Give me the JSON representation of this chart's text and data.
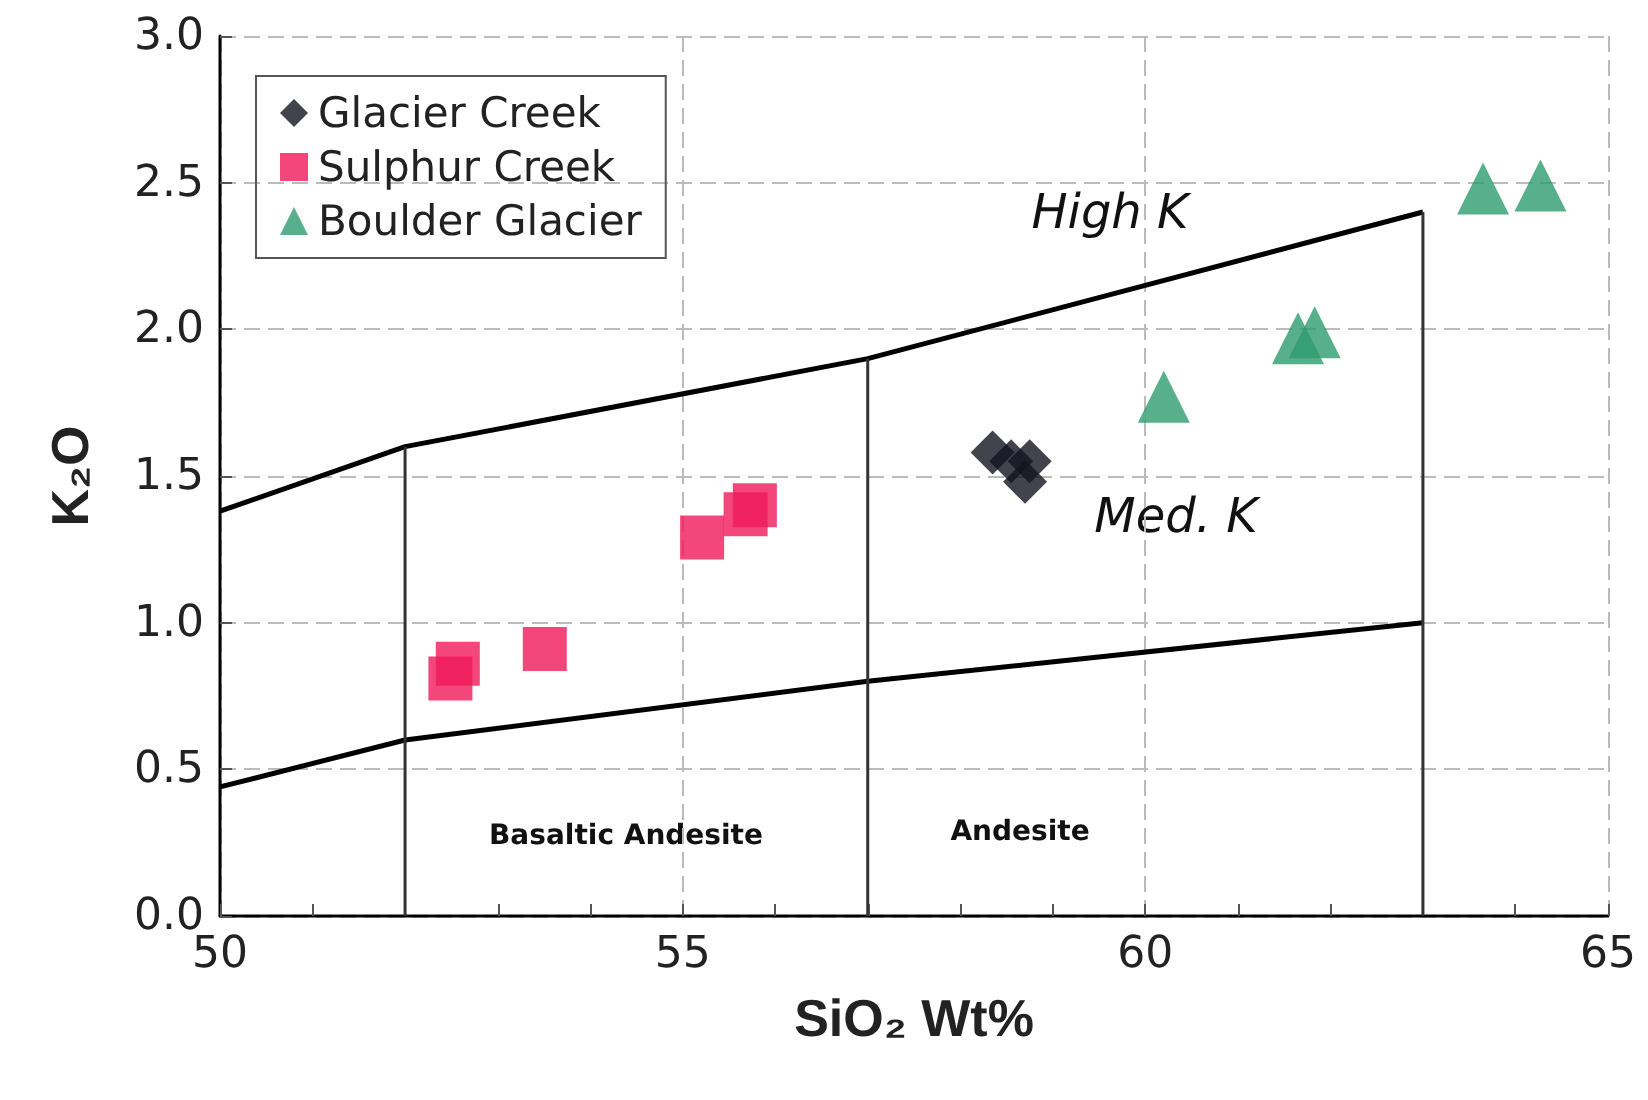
{
  "chart_data": {
    "type": "scatter",
    "xlabel": "SiO₂ Wt%",
    "ylabel": "K₂O",
    "xlim": [
      50,
      65
    ],
    "ylim": [
      0,
      3.0
    ],
    "xticks": [
      50,
      {
        "value": 51,
        "label": null
      },
      {
        "value": 52,
        "label": null
      },
      {
        "value": 53,
        "label": null
      },
      {
        "value": 54,
        "label": null
      },
      55,
      {
        "value": 56,
        "label": null
      },
      {
        "value": 57,
        "label": null
      },
      {
        "value": 58,
        "label": null
      },
      {
        "value": 59,
        "label": null
      },
      60,
      {
        "value": 61,
        "label": null
      },
      {
        "value": 62,
        "label": null
      },
      {
        "value": 63,
        "label": null
      },
      {
        "value": 64,
        "label": null
      },
      65
    ],
    "yticks": [
      {
        "value": 0,
        "label": "0.0"
      },
      0.5,
      {
        "value": 1,
        "label": "1.0"
      },
      1.5,
      {
        "value": 2,
        "label": "2.0"
      },
      2.5,
      {
        "value": 3,
        "label": "3.0"
      }
    ],
    "grid": true,
    "legend": "top left",
    "series": [
      {
        "name": "Glacier Creek",
        "color": "#141420",
        "marker": "diamond",
        "x": [
          58.35,
          58.55,
          58.75,
          58.7
        ],
        "values": [
          1.58,
          1.55,
          1.55,
          1.48
        ]
      },
      {
        "name": "Sulphur Creek",
        "color": "#f0195a",
        "marker": "square",
        "x": [
          52.49,
          52.57,
          53.51,
          55.21,
          55.68,
          55.78
        ],
        "values": [
          0.81,
          0.86,
          0.91,
          1.29,
          1.37,
          1.4
        ]
      },
      {
        "name": "Boulder Glacier",
        "color": "#2e9b6e",
        "marker": "triangle",
        "x": [
          60.2,
          61.65,
          61.83,
          63.65,
          64.27
        ],
        "values": [
          1.77,
          1.97,
          1.99,
          2.48,
          2.49
        ]
      },
      {
        "type": "line",
        "color": "#000000",
        "marker": "none",
        "x": [
          50,
          52,
          57,
          63
        ],
        "values": [
          1.38,
          1.6,
          1.9,
          2.4
        ]
      },
      {
        "type": "line",
        "color": "#000000",
        "marker": "none",
        "x": [
          50,
          52,
          57,
          63
        ],
        "values": [
          0.44,
          0.6,
          0.8,
          1.0
        ]
      },
      {
        "type": "line",
        "color": "#333333",
        "marker": "none",
        "x": [
          52,
          52
        ],
        "values": [
          0,
          1.6
        ]
      },
      {
        "type": "line",
        "color": "#333333",
        "marker": "none",
        "x": [
          57,
          57
        ],
        "values": [
          0,
          1.9
        ]
      },
      {
        "type": "line",
        "color": "#333333",
        "marker": "none",
        "x": [
          63,
          63
        ],
        "values": [
          0,
          2.4
        ]
      }
    ],
    "annotations": [
      "High K",
      "Med. K",
      "Basaltic Andesite",
      "Andesite"
    ]
  }
}
